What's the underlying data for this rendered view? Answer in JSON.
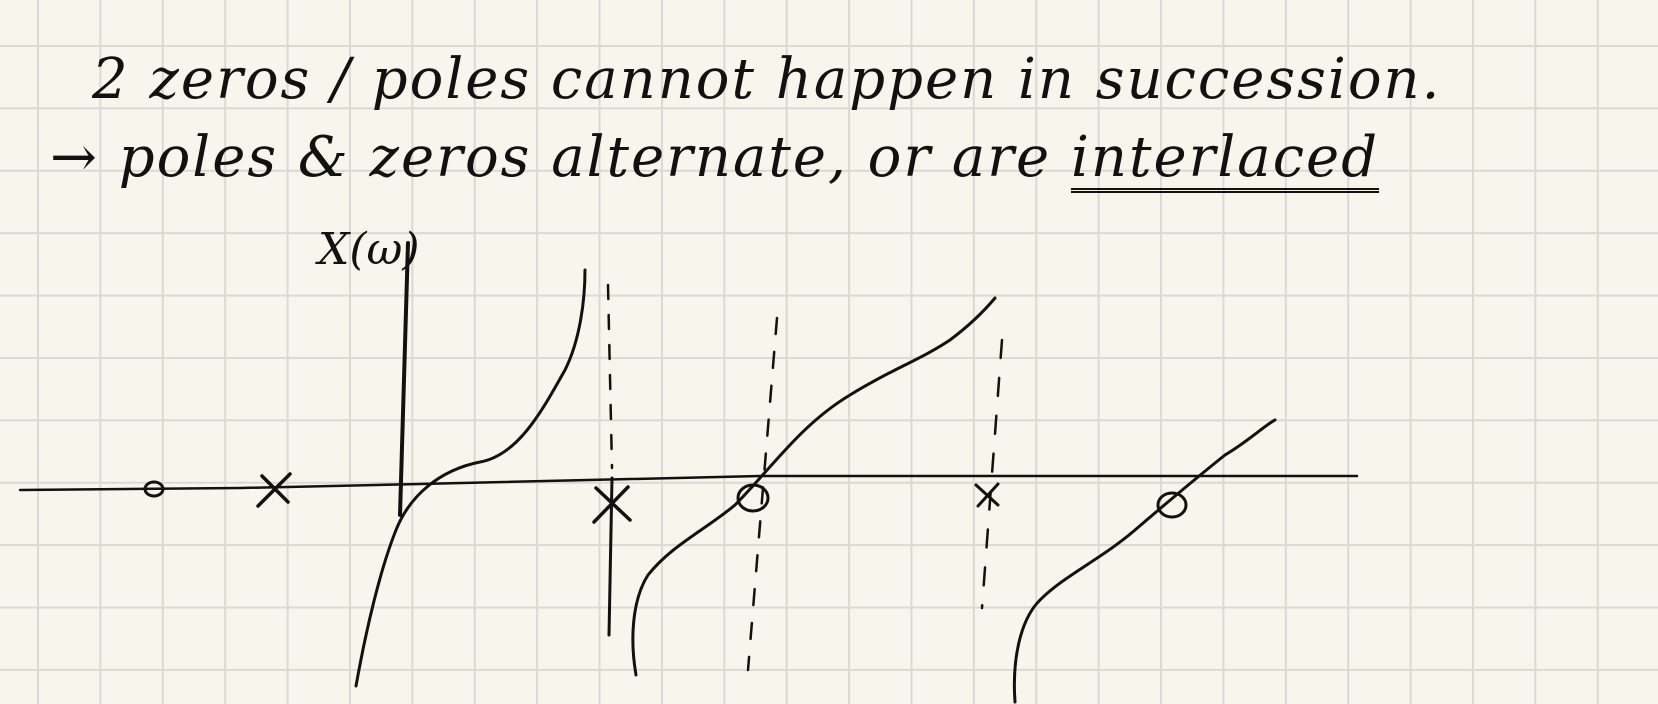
{
  "notes": {
    "line1": "2 zeros / poles cannot happen in succession.",
    "line2_prefix": "→ poles & zeros alternate, or are",
    "line2_emphasis": "interlaced"
  },
  "diagram": {
    "y_axis_label": "X(ω)",
    "markers": [
      {
        "kind": "zero",
        "position": "far-left"
      },
      {
        "kind": "pole",
        "position": "left"
      },
      {
        "kind": "pole",
        "position": "right of origin",
        "asymptote": "dashed"
      },
      {
        "kind": "zero",
        "position": "middle",
        "guide": "dashed"
      },
      {
        "kind": "pole",
        "position": "right",
        "asymptote": "dashed"
      },
      {
        "kind": "zero",
        "position": "far-right"
      }
    ]
  },
  "colors": {
    "paper": "#f7f6ec",
    "grid": "#d9d9d6",
    "ink": "#111111"
  }
}
